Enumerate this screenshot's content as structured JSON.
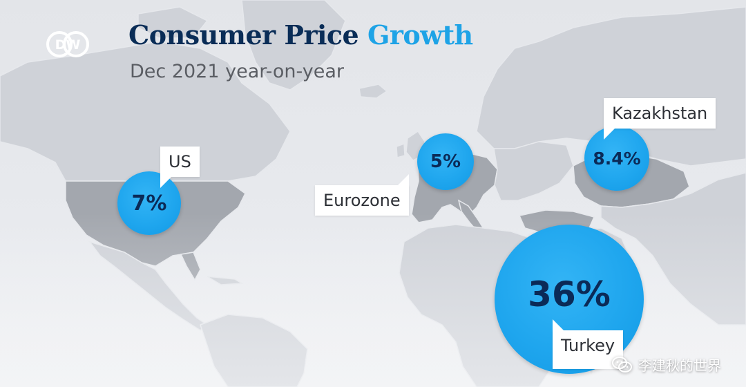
{
  "header": {
    "title_main": "Consumer Price",
    "title_accent": "Growth",
    "subtitle": "Dec 2021 year-on-year",
    "logo_text": "DW"
  },
  "markers": [
    {
      "country": "US",
      "value_text": "7%",
      "value": 7
    },
    {
      "country": "Eurozone",
      "value_text": "5%",
      "value": 5
    },
    {
      "country": "Kazakhstan",
      "value_text": "8.4%",
      "value": 8.4
    },
    {
      "country": "Turkey",
      "value_text": "36%",
      "value": 36
    }
  ],
  "colors": {
    "title": "#0a2d57",
    "accent": "#1ea3e6",
    "bubble": "#1fa6ee",
    "highlight_land": "#a3a7ae",
    "land": "#cfd2d8"
  },
  "watermark": {
    "text": "李建秋的世界",
    "icon": "wechat-icon"
  }
}
